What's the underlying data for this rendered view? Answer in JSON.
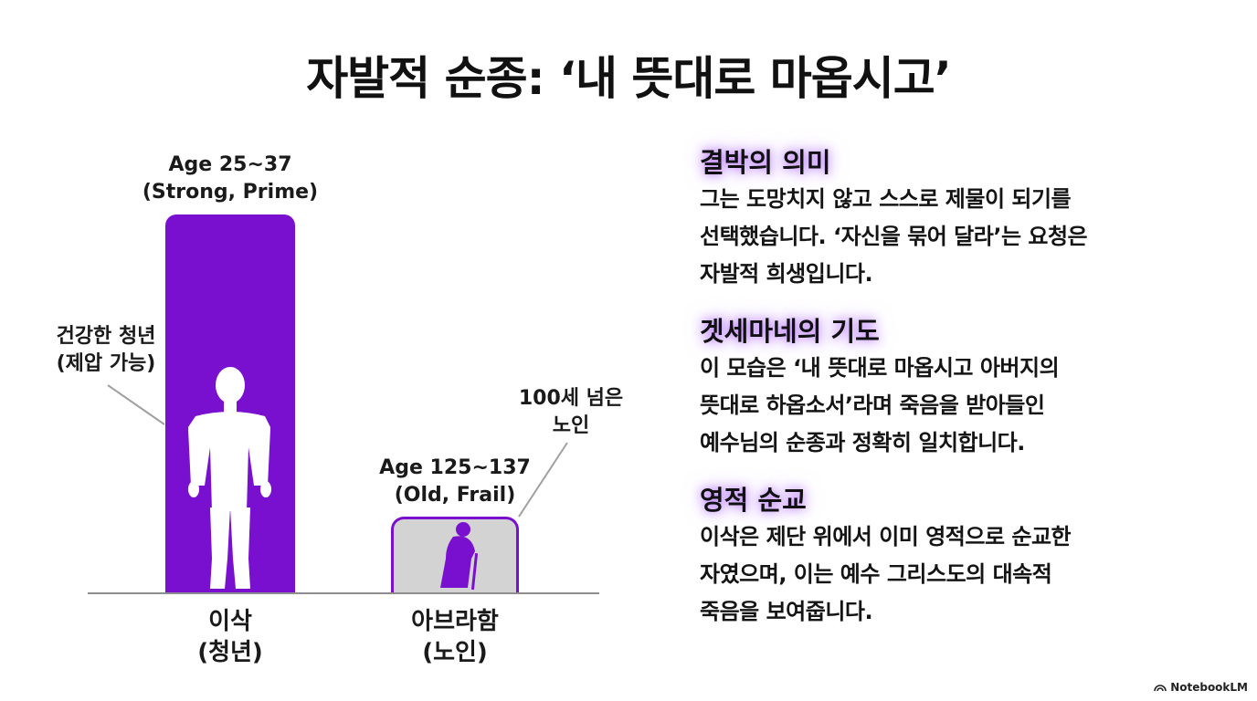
{
  "title": "자발적 순종: ‘내 뜻대로 마옵시고’",
  "figure": {
    "young": {
      "age": "Age 25~37",
      "condition": "(Strong, Prime)",
      "callout_line1": "건강한 청년",
      "callout_line2": "(제압 가능)",
      "name": "이삭",
      "role": "(청년)"
    },
    "old": {
      "age": "Age 125~137",
      "condition": "(Old, Frail)",
      "callout_line1": "100세 넘은",
      "callout_line2": "노인",
      "name": "아브라함",
      "role": "(노인)"
    },
    "colors": {
      "young_bar": "#7a10cf",
      "old_bar_fill": "#d3d3d3",
      "old_bar_border": "#7a10cf",
      "old_figure": "#7a10cf"
    },
    "icons": {
      "young": "muscular-man-silhouette-icon",
      "old": "elderly-person-with-cane-icon"
    }
  },
  "sections": [
    {
      "heading": "결박의 의미",
      "lines": [
        "그는 도망치지 않고 스스로 제물이 되기를",
        "선택했습니다. ‘자신을 묶어 달라’는 요청은",
        "자발적 희생입니다."
      ]
    },
    {
      "heading": "겟세마네의 기도",
      "lines": [
        "이 모습은 ‘내 뜻대로 마옵시고 아버지의",
        "뜻대로 하옵소서’라며 죽음을 받아들인",
        "예수님의 순종과 정확히 일치합니다."
      ]
    },
    {
      "heading": "영적 순교",
      "lines": [
        "이삭은 제단 위에서 이미 영적으로 순교한",
        "자였으며, 이는 예수 그리스도의 대속적",
        "죽음을 보여줍니다."
      ]
    }
  ],
  "brand": "NotebookLM"
}
